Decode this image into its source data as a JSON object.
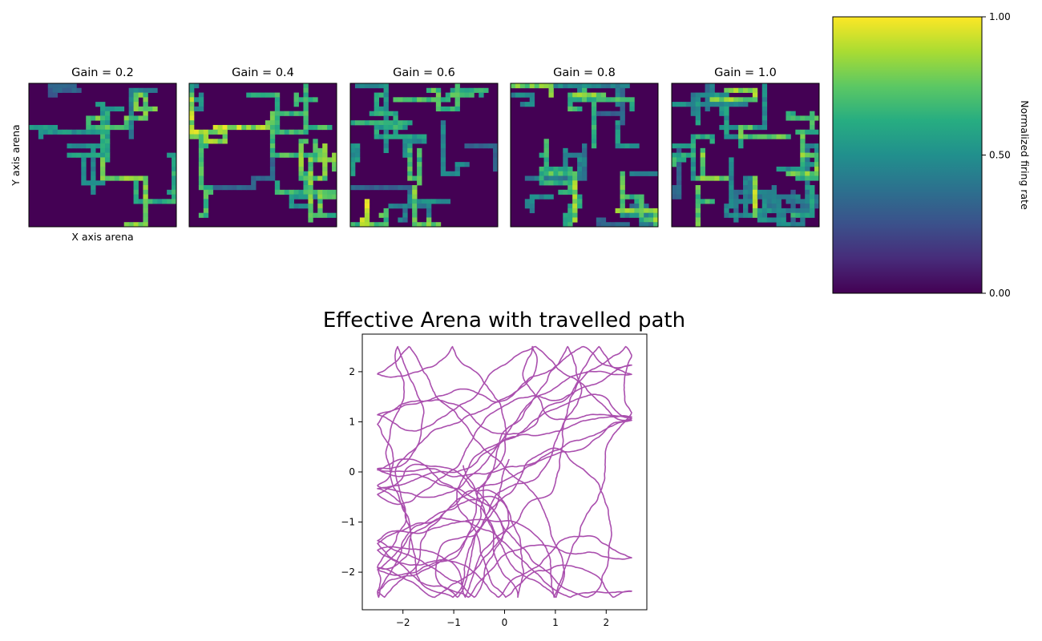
{
  "chart_data": [
    {
      "type": "heatmap",
      "panel": "gain-0.2",
      "title": "Gain = 0.2",
      "xlabel": "X axis arena",
      "ylabel": "Y axis arena",
      "grid_cells": 31,
      "seed": 11,
      "paths": 9,
      "colormap": "viridis"
    },
    {
      "type": "heatmap",
      "panel": "gain-0.4",
      "title": "Gain = 0.4",
      "xlabel": "",
      "ylabel": "",
      "grid_cells": 31,
      "seed": 23,
      "paths": 12,
      "colormap": "viridis"
    },
    {
      "type": "heatmap",
      "panel": "gain-0.6",
      "title": "Gain = 0.6",
      "xlabel": "",
      "ylabel": "",
      "grid_cells": 31,
      "seed": 37,
      "paths": 18,
      "colormap": "viridis"
    },
    {
      "type": "heatmap",
      "panel": "gain-0.8",
      "title": "Gain = 0.8",
      "xlabel": "",
      "ylabel": "",
      "grid_cells": 31,
      "seed": 51,
      "paths": 22,
      "colormap": "viridis"
    },
    {
      "type": "heatmap",
      "panel": "gain-1.0",
      "title": "Gain = 1.0",
      "xlabel": "",
      "ylabel": "",
      "grid_cells": 31,
      "seed": 67,
      "paths": 30,
      "colormap": "viridis"
    },
    {
      "type": "colorbar",
      "label": "Normalized firing rate",
      "ticks": [
        "0.00",
        "0.50",
        "1.00"
      ],
      "tick_values": [
        0.0,
        0.5,
        1.0
      ],
      "range": [
        0,
        1
      ],
      "colormap": "viridis"
    },
    {
      "type": "line",
      "title": "Effective Arena with travelled path",
      "xlim": [
        -2.8,
        2.8
      ],
      "ylim": [
        -2.75,
        2.75
      ],
      "xticks": [
        "−2",
        "−1",
        "0",
        "1",
        "2"
      ],
      "xtick_values": [
        -2,
        -1,
        0,
        1,
        2
      ],
      "yticks": [
        "−2",
        "−1",
        "0",
        "1",
        "2"
      ],
      "ytick_values": [
        -2,
        -1,
        0,
        1,
        2
      ],
      "line_color": "#aa4fae",
      "random_walk": {
        "seed": 5,
        "steps": 4200,
        "bounds": [
          -2.5,
          2.5
        ],
        "speed": 0.045
      }
    }
  ]
}
